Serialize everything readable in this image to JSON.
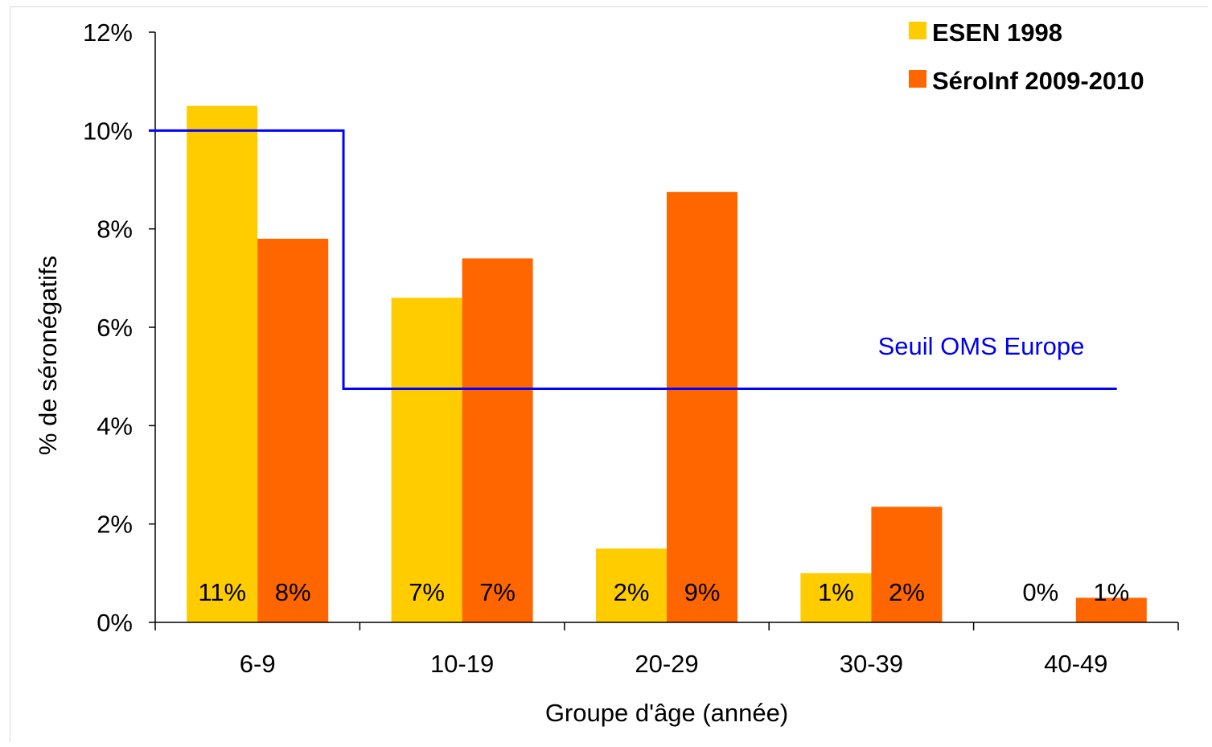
{
  "chart_data": {
    "type": "bar",
    "title": "",
    "xlabel": "Groupe d'âge (année)",
    "ylabel": "% de séronégatifs",
    "ylim": [
      0,
      12
    ],
    "yticks": [
      0,
      2,
      4,
      6,
      8,
      10,
      12
    ],
    "ytick_labels": [
      "0%",
      "2%",
      "4%",
      "6%",
      "8%",
      "10%",
      "12%"
    ],
    "categories": [
      "6-9",
      "10-19",
      "20-29",
      "30-39",
      "40-49"
    ],
    "series": [
      {
        "name": "ESEN 1998",
        "color": "#FFCC00",
        "values": [
          10.5,
          6.6,
          1.5,
          1.0,
          0.0
        ],
        "labels": [
          "11%",
          "7%",
          "2%",
          "1%",
          "0%"
        ]
      },
      {
        "name": "SéroInf 2009-2010",
        "color": "#FF6600",
        "values": [
          7.8,
          7.4,
          8.75,
          2.35,
          0.5
        ],
        "labels": [
          "8%",
          "7%",
          "9%",
          "2%",
          "1%"
        ]
      }
    ],
    "threshold": {
      "label": "Seuil OMS Europe",
      "color": "#0000FF",
      "steps": [
        {
          "from_category": "6-9",
          "value": 10
        },
        {
          "from_category": "10-19",
          "value": 4.75
        }
      ]
    },
    "legend_position": "top-right",
    "grid": false
  }
}
